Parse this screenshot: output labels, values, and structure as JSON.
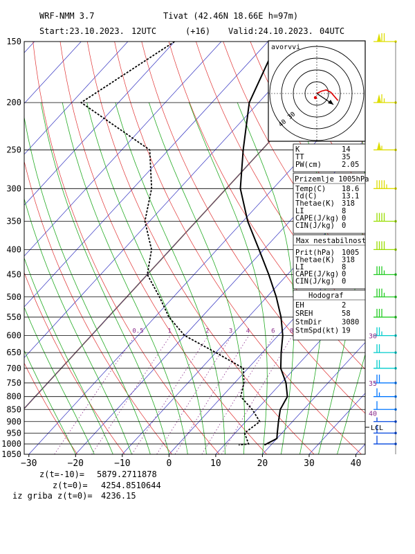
{
  "header": {
    "line1_left": "WRF-NMM 3.7",
    "line1_right": "Tivat (42.46N 18.66E  h=97m)",
    "start": "Start:23.10.2023.",
    "start_hour": "12UTC",
    "lead": "(+16)",
    "valid": "Valid:24.10.2023.",
    "valid_hour": "04UTC"
  },
  "colors": {
    "temperature_profile": "#000000",
    "dewpoint_profile": "#000000",
    "isotherm": "#3030c0",
    "dry_adiabat": "#e03030",
    "moist_adiabat": "#22aa22",
    "mixing_ratio": "#8a2a8a",
    "isobar": "#000000",
    "freezing_level_shade": "#a07010",
    "wind_barb_colors": [
      "#dddd00",
      "#99dd00",
      "#22cc22",
      "#00cccc",
      "#0077ff",
      "#0044dd"
    ]
  },
  "chart_data": {
    "type": "skew-t",
    "xlabel": "",
    "ylabel": "",
    "pressure_ticks": [
      150,
      200,
      250,
      300,
      350,
      400,
      450,
      500,
      550,
      600,
      650,
      700,
      750,
      800,
      850,
      900,
      950,
      1000,
      1050
    ],
    "temperature_ticks": [
      -30,
      -20,
      -10,
      0,
      10,
      20,
      30,
      40
    ],
    "ylim_hpa": [
      150,
      1050
    ],
    "xlim_c_at_1050": [
      -31,
      42
    ],
    "mixing_ratio_labels": [
      "0.5",
      "1",
      "2",
      "3",
      "4",
      "6",
      "8"
    ],
    "mixing_ratio_values_gkg": [
      0.5,
      1,
      2,
      3,
      4,
      6,
      8
    ],
    "mixing_ratio_label_pressure": 600,
    "temperature_profile": [
      {
        "p": 150,
        "t": -58
      },
      {
        "p": 200,
        "t": -52
      },
      {
        "p": 250,
        "t": -44
      },
      {
        "p": 300,
        "t": -37
      },
      {
        "p": 350,
        "t": -29
      },
      {
        "p": 400,
        "t": -21
      },
      {
        "p": 450,
        "t": -14
      },
      {
        "p": 500,
        "t": -8
      },
      {
        "p": 550,
        "t": -3
      },
      {
        "p": 600,
        "t": 1
      },
      {
        "p": 650,
        "t": 4
      },
      {
        "p": 700,
        "t": 7
      },
      {
        "p": 750,
        "t": 11
      },
      {
        "p": 800,
        "t": 14
      },
      {
        "p": 850,
        "t": 15
      },
      {
        "p": 900,
        "t": 17
      },
      {
        "p": 950,
        "t": 19
      },
      {
        "p": 975,
        "t": 20
      },
      {
        "p": 1005,
        "t": 18.6
      }
    ],
    "dewpoint_profile": [
      {
        "p": 150,
        "t": -80
      },
      {
        "p": 200,
        "t": -88
      },
      {
        "p": 250,
        "t": -64
      },
      {
        "p": 300,
        "t": -56
      },
      {
        "p": 350,
        "t": -51
      },
      {
        "p": 400,
        "t": -44
      },
      {
        "p": 450,
        "t": -40
      },
      {
        "p": 500,
        "t": -33
      },
      {
        "p": 550,
        "t": -27
      },
      {
        "p": 600,
        "t": -20
      },
      {
        "p": 650,
        "t": -10
      },
      {
        "p": 700,
        "t": -1
      },
      {
        "p": 750,
        "t": 2
      },
      {
        "p": 800,
        "t": 4
      },
      {
        "p": 850,
        "t": 9
      },
      {
        "p": 900,
        "t": 13
      },
      {
        "p": 950,
        "t": 12
      },
      {
        "p": 1000,
        "t": 15
      },
      {
        "p": 1005,
        "t": 13.1
      }
    ],
    "wind_barbs": [
      {
        "p": 150,
        "speed_kt": 70
      },
      {
        "p": 200,
        "speed_kt": 65
      },
      {
        "p": 250,
        "speed_kt": 55
      },
      {
        "p": 300,
        "speed_kt": 45
      },
      {
        "p": 350,
        "speed_kt": 40
      },
      {
        "p": 400,
        "speed_kt": 40
      },
      {
        "p": 450,
        "speed_kt": 35
      },
      {
        "p": 500,
        "speed_kt": 35
      },
      {
        "p": 550,
        "speed_kt": 30
      },
      {
        "p": 600,
        "speed_kt": 25
      },
      {
        "p": 650,
        "speed_kt": 20
      },
      {
        "p": 700,
        "speed_kt": 20
      },
      {
        "p": 750,
        "speed_kt": 20
      },
      {
        "p": 800,
        "speed_kt": 15
      },
      {
        "p": 850,
        "speed_kt": 10
      },
      {
        "p": 900,
        "speed_kt": 5
      },
      {
        "p": 950,
        "speed_kt": 10
      },
      {
        "p": 1000,
        "speed_kt": 10
      }
    ],
    "height_labels": [
      {
        "p": 600,
        "label": "30"
      },
      {
        "p": 750,
        "label": "35"
      },
      {
        "p": 865,
        "label": "40"
      }
    ],
    "lcl_label": "LCL",
    "lcl_pressure": 930
  },
  "hodograph": {
    "title": "avorvvi",
    "rings": 4,
    "ring_labels": [
      "10",
      "20",
      "30",
      "40"
    ],
    "points_kt": [
      [
        0,
        0
      ],
      [
        4,
        2
      ],
      [
        8,
        3
      ],
      [
        12,
        1
      ],
      [
        18,
        -6
      ]
    ]
  },
  "indices": {
    "rows": [
      {
        "label": "K",
        "value": "14"
      },
      {
        "label": "TT",
        "value": "35"
      },
      {
        "label": "PW(cm)",
        "value": "2.05"
      }
    ]
  },
  "surface": {
    "title": "Prizemlje 1005hPa",
    "rows": [
      {
        "label": "Temp(C)",
        "value": "18.6"
      },
      {
        "label": "Td(C)",
        "value": "13.1"
      },
      {
        "label": "Thetae(K)",
        "value": "318"
      },
      {
        "label": "LI",
        "value": "8"
      },
      {
        "label": "CAPE(J/kg)",
        "value": "0"
      },
      {
        "label": "CIN(J/kg)",
        "value": "0"
      }
    ]
  },
  "max_instability": {
    "title": "Max nestabilnost",
    "rows": [
      {
        "label": "Prit(hPa)",
        "value": "1005"
      },
      {
        "label": "Thetae(K)",
        "value": "318"
      },
      {
        "label": "LI",
        "value": "8"
      },
      {
        "label": "CAPE(J/kg)",
        "value": "0"
      },
      {
        "label": "CIN(J/kg)",
        "value": "0"
      }
    ]
  },
  "hodograph_params": {
    "title": "Hodograf",
    "rows": [
      {
        "label": "EH",
        "value": "2"
      },
      {
        "label": "SREH",
        "value": "58"
      },
      {
        "label": "StmDir",
        "value": "3080"
      },
      {
        "label": "StmSpd(kt)",
        "value": "19"
      }
    ]
  },
  "footer": {
    "lines": [
      {
        "label": "z(t=-10)=",
        "value": "5879.2711878"
      },
      {
        "label": "z(t=0)=",
        "value": "4254.8510644"
      },
      {
        "label": "iz griba  z(t=0)=",
        "value": "4236.15"
      }
    ]
  }
}
